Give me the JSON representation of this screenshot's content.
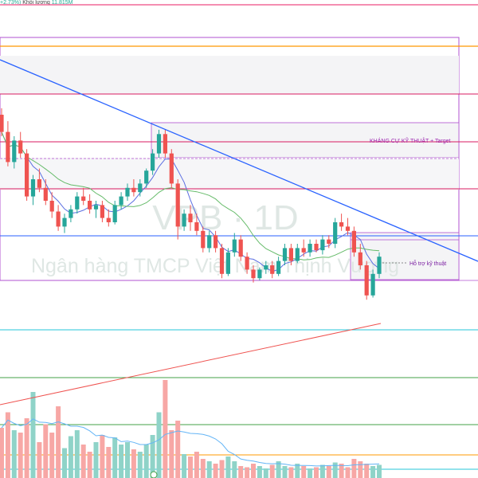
{
  "legend": {
    "change": "+2.73%)",
    "volume_label": "Khối lượng",
    "volume_value": "11.815M",
    "volume_color": "#22ab94"
  },
  "watermark": {
    "symbol": "VPB · 1D",
    "name": "Ngân hàng TMCP Việt Nam Thịnh Vượng"
  },
  "annotations": {
    "resistance": "KHÁNG CỰ KỸ THUẬT + Target",
    "support": "Hỗ trợ kỹ thuật"
  },
  "colors": {
    "up": "#26a69a",
    "down": "#ef5350",
    "trendline": "#2962ff",
    "ma_fast": "#5b6ee1",
    "ma_slow": "#66bb6a",
    "zone_border": "#b050d0",
    "pink_level": "#d81b60",
    "orange_level": "#ff9800",
    "cyan_level": "#26c6da",
    "green_level": "#43a047",
    "volume_ma": "#64b5f6",
    "volume_trend": "#ef5350"
  },
  "chart_data": {
    "type": "candlestick",
    "price_range": [
      0,
      100
    ],
    "candles": [
      {
        "o": 80,
        "h": 83,
        "l": 70,
        "c": 72
      },
      {
        "o": 72,
        "h": 77,
        "l": 56,
        "c": 58
      },
      {
        "o": 58,
        "h": 70,
        "l": 55,
        "c": 68
      },
      {
        "o": 68,
        "h": 72,
        "l": 60,
        "c": 62
      },
      {
        "o": 62,
        "h": 64,
        "l": 40,
        "c": 42
      },
      {
        "o": 42,
        "h": 52,
        "l": 38,
        "c": 50
      },
      {
        "o": 50,
        "h": 55,
        "l": 44,
        "c": 46
      },
      {
        "o": 46,
        "h": 50,
        "l": 38,
        "c": 40
      },
      {
        "o": 40,
        "h": 44,
        "l": 32,
        "c": 35
      },
      {
        "o": 35,
        "h": 38,
        "l": 26,
        "c": 28
      },
      {
        "o": 28,
        "h": 34,
        "l": 25,
        "c": 32
      },
      {
        "o": 32,
        "h": 38,
        "l": 30,
        "c": 36
      },
      {
        "o": 36,
        "h": 44,
        "l": 34,
        "c": 42
      },
      {
        "o": 42,
        "h": 46,
        "l": 38,
        "c": 40
      },
      {
        "o": 40,
        "h": 43,
        "l": 34,
        "c": 36
      },
      {
        "o": 36,
        "h": 40,
        "l": 32,
        "c": 38
      },
      {
        "o": 38,
        "h": 40,
        "l": 30,
        "c": 32
      },
      {
        "o": 32,
        "h": 36,
        "l": 28,
        "c": 30
      },
      {
        "o": 30,
        "h": 40,
        "l": 29,
        "c": 38
      },
      {
        "o": 38,
        "h": 44,
        "l": 36,
        "c": 42
      },
      {
        "o": 42,
        "h": 48,
        "l": 40,
        "c": 46
      },
      {
        "o": 46,
        "h": 50,
        "l": 42,
        "c": 44
      },
      {
        "o": 44,
        "h": 50,
        "l": 42,
        "c": 48
      },
      {
        "o": 48,
        "h": 55,
        "l": 46,
        "c": 54
      },
      {
        "o": 54,
        "h": 64,
        "l": 52,
        "c": 62
      },
      {
        "o": 62,
        "h": 73,
        "l": 60,
        "c": 71
      },
      {
        "o": 71,
        "h": 73,
        "l": 60,
        "c": 62
      },
      {
        "o": 62,
        "h": 64,
        "l": 46,
        "c": 48
      },
      {
        "o": 48,
        "h": 50,
        "l": 22,
        "c": 28
      },
      {
        "o": 28,
        "h": 36,
        "l": 26,
        "c": 34
      },
      {
        "o": 34,
        "h": 38,
        "l": 26,
        "c": 30
      },
      {
        "o": 30,
        "h": 34,
        "l": 24,
        "c": 26
      },
      {
        "o": 26,
        "h": 28,
        "l": 16,
        "c": 18
      },
      {
        "o": 18,
        "h": 26,
        "l": 16,
        "c": 24
      },
      {
        "o": 24,
        "h": 26,
        "l": 16,
        "c": 18
      },
      {
        "o": 18,
        "h": 20,
        "l": 4,
        "c": 6
      },
      {
        "o": 6,
        "h": 18,
        "l": 5,
        "c": 16
      },
      {
        "o": 16,
        "h": 25,
        "l": 14,
        "c": 22
      },
      {
        "o": 22,
        "h": 24,
        "l": 12,
        "c": 14
      },
      {
        "o": 14,
        "h": 16,
        "l": 6,
        "c": 8
      },
      {
        "o": 8,
        "h": 10,
        "l": 2,
        "c": 4
      },
      {
        "o": 4,
        "h": 9,
        "l": 3,
        "c": 8
      },
      {
        "o": 8,
        "h": 12,
        "l": 6,
        "c": 10
      },
      {
        "o": 10,
        "h": 12,
        "l": 4,
        "c": 6
      },
      {
        "o": 6,
        "h": 14,
        "l": 5,
        "c": 12
      },
      {
        "o": 12,
        "h": 20,
        "l": 10,
        "c": 18
      },
      {
        "o": 18,
        "h": 20,
        "l": 10,
        "c": 12
      },
      {
        "o": 12,
        "h": 20,
        "l": 11,
        "c": 18
      },
      {
        "o": 18,
        "h": 22,
        "l": 14,
        "c": 16
      },
      {
        "o": 16,
        "h": 22,
        "l": 14,
        "c": 20
      },
      {
        "o": 20,
        "h": 22,
        "l": 16,
        "c": 17
      },
      {
        "o": 17,
        "h": 24,
        "l": 15,
        "c": 22
      },
      {
        "o": 22,
        "h": 24,
        "l": 18,
        "c": 20
      },
      {
        "o": 20,
        "h": 32,
        "l": 18,
        "c": 30
      },
      {
        "o": 30,
        "h": 34,
        "l": 26,
        "c": 28
      },
      {
        "o": 28,
        "h": 32,
        "l": 24,
        "c": 26
      },
      {
        "o": 26,
        "h": 28,
        "l": 14,
        "c": 16
      },
      {
        "o": 16,
        "h": 20,
        "l": 8,
        "c": 10
      },
      {
        "o": 10,
        "h": 12,
        "l": -6,
        "c": -4
      },
      {
        "o": -4,
        "h": 8,
        "l": -5,
        "c": 6
      },
      {
        "o": 6,
        "h": 16,
        "l": 4,
        "c": 14
      }
    ],
    "volumes": [
      42,
      55,
      40,
      38,
      50,
      72,
      30,
      45,
      38,
      60,
      25,
      35,
      40,
      28,
      22,
      30,
      36,
      26,
      34,
      28,
      30,
      24,
      22,
      28,
      36,
      55,
      82,
      40,
      48,
      20,
      18,
      22,
      16,
      14,
      12,
      15,
      18,
      14,
      10,
      9,
      12,
      10,
      8,
      11,
      14,
      10,
      9,
      12,
      10,
      8,
      9,
      11,
      10,
      13,
      12,
      9,
      16,
      14,
      12,
      10,
      11
    ],
    "volume_range": [
      0,
      100
    ]
  }
}
